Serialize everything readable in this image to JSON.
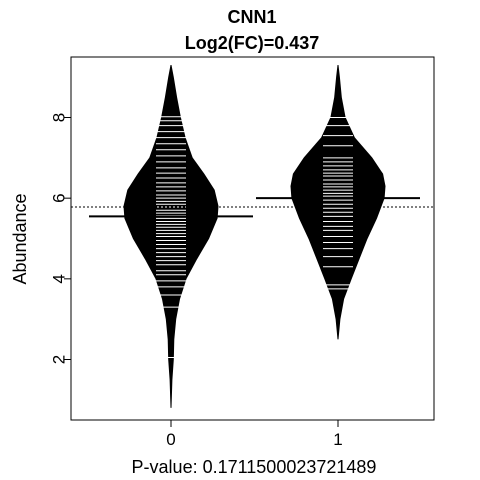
{
  "chart_data": {
    "type": "beanplot",
    "title": "CNN1",
    "subtitle": "Log2(FC)=0.437",
    "xlabel": "P-value: 0.1711500023721489",
    "ylabel": "Abundance",
    "categories": [
      "0",
      "1"
    ],
    "ylim": [
      0.5,
      9.5
    ],
    "yticks": [
      2,
      4,
      6,
      8
    ],
    "overall_mean": 5.78,
    "grid": false,
    "groups": [
      {
        "name": "0",
        "mean": 5.55,
        "range": [
          0.8,
          9.3
        ],
        "density": [
          [
            0.8,
            0.0
          ],
          [
            1.5,
            0.02
          ],
          [
            2.0,
            0.05
          ],
          [
            2.5,
            0.06
          ],
          [
            3.0,
            0.1
          ],
          [
            3.5,
            0.18
          ],
          [
            4.0,
            0.32
          ],
          [
            4.5,
            0.55
          ],
          [
            5.0,
            0.8
          ],
          [
            5.5,
            0.98
          ],
          [
            5.8,
            1.0
          ],
          [
            6.2,
            0.92
          ],
          [
            6.6,
            0.7
          ],
          [
            7.0,
            0.45
          ],
          [
            7.5,
            0.3
          ],
          [
            8.0,
            0.2
          ],
          [
            8.5,
            0.12
          ],
          [
            9.0,
            0.05
          ],
          [
            9.3,
            0.0
          ]
        ],
        "observations": [
          2.05,
          3.3,
          3.6,
          3.8,
          3.95,
          4.1,
          4.2,
          4.35,
          4.45,
          4.55,
          4.65,
          4.75,
          4.85,
          4.95,
          5.05,
          5.12,
          5.2,
          5.28,
          5.35,
          5.42,
          5.5,
          5.57,
          5.63,
          5.7,
          5.78,
          5.85,
          5.92,
          6.0,
          6.08,
          6.18,
          6.28,
          6.38,
          6.5,
          6.62,
          6.75,
          6.9,
          7.05,
          7.2,
          7.35,
          7.5,
          7.65,
          7.8,
          7.92,
          8.02
        ]
      },
      {
        "name": "1",
        "mean": 6.0,
        "range": [
          2.5,
          9.3
        ],
        "density": [
          [
            2.5,
            0.0
          ],
          [
            3.0,
            0.04
          ],
          [
            3.5,
            0.12
          ],
          [
            4.0,
            0.28
          ],
          [
            4.5,
            0.45
          ],
          [
            5.0,
            0.62
          ],
          [
            5.5,
            0.82
          ],
          [
            6.0,
            0.98
          ],
          [
            6.3,
            1.0
          ],
          [
            6.6,
            0.95
          ],
          [
            7.0,
            0.72
          ],
          [
            7.5,
            0.35
          ],
          [
            8.0,
            0.15
          ],
          [
            8.5,
            0.07
          ],
          [
            9.0,
            0.03
          ],
          [
            9.3,
            0.0
          ]
        ],
        "observations": [
          3.75,
          3.85,
          4.3,
          4.55,
          4.75,
          4.9,
          5.05,
          5.2,
          5.3,
          5.42,
          5.55,
          5.65,
          5.75,
          5.85,
          5.95,
          6.05,
          6.12,
          6.2,
          6.28,
          6.35,
          6.45,
          6.55,
          6.62,
          6.7,
          6.8,
          6.9,
          7.0,
          7.3,
          7.55,
          7.8,
          8.0
        ]
      }
    ]
  }
}
